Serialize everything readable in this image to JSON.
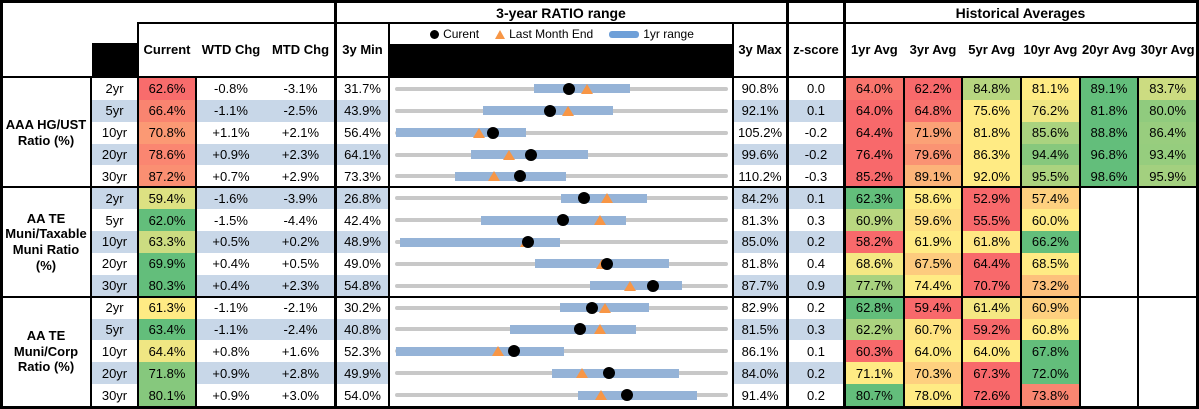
{
  "header": {
    "range_section_title": "3-year RATIO range",
    "historical_section_title": "Historical Averages",
    "legend": {
      "current_label": "Curent",
      "last_month_label": "Last Month End",
      "range_label": "1yr range"
    },
    "columns": {
      "current": "Current",
      "wtd": "WTD Chg",
      "mtd": "MTD Chg",
      "min": "3y Min",
      "max": "3y Max",
      "zscore": "z-score",
      "avgs": [
        "1yr Avg",
        "3yr Avg",
        "5yr Avg",
        "10yr Avg",
        "20yr Avg",
        "30yr Avg"
      ]
    }
  },
  "colors": {
    "stripe_blue": "#C8D7E8",
    "scale_min_red": "#F8696B",
    "scale_mid_yellow": "#FFEB84",
    "scale_max_green": "#63BE7B",
    "range_bar_blue": "#95B3D7",
    "track_gray": "#C8C8C8",
    "marker_dot_black": "#000000",
    "marker_triangle_orange": "#F79646",
    "header_black": "#000000"
  },
  "groups": [
    {
      "label": "AAA HG/UST Ratio (%)",
      "rows": [
        {
          "tenor": "2yr",
          "current": 62.6,
          "wtd": "-0.8%",
          "mtd": "-3.1%",
          "min": 31.7,
          "max": 90.8,
          "zscore": "0.0",
          "avgs": [
            64.0,
            62.2,
            84.8,
            81.1,
            89.1,
            83.7
          ],
          "bar": [
            56.3,
            73.4
          ],
          "last_month": 65.7
        },
        {
          "tenor": "5yr",
          "current": 66.4,
          "wtd": "-1.1%",
          "mtd": "-2.5%",
          "min": 43.9,
          "max": 92.1,
          "zscore": "0.1",
          "avgs": [
            64.0,
            64.8,
            75.6,
            76.2,
            81.8,
            80.0
          ],
          "bar": [
            56.6,
            75.5
          ],
          "last_month": 68.9
        },
        {
          "tenor": "10yr",
          "current": 70.8,
          "wtd": "+1.1%",
          "mtd": "+2.1%",
          "min": 56.4,
          "max": 105.2,
          "zscore": "-0.2",
          "avgs": [
            64.4,
            71.9,
            81.8,
            85.6,
            88.8,
            86.4
          ],
          "bar": [
            56.5,
            75.6
          ],
          "last_month": 68.7
        },
        {
          "tenor": "20yr",
          "current": 78.6,
          "wtd": "+0.9%",
          "mtd": "+2.3%",
          "min": 64.1,
          "max": 99.6,
          "zscore": "-0.2",
          "avgs": [
            76.4,
            79.6,
            86.3,
            94.4,
            96.8,
            93.4
          ],
          "bar": [
            72.2,
            84.7
          ],
          "last_month": 76.3
        },
        {
          "tenor": "30yr",
          "current": 87.2,
          "wtd": "+0.7%",
          "mtd": "+2.9%",
          "min": 73.3,
          "max": 110.2,
          "zscore": "-0.3",
          "avgs": [
            85.2,
            89.1,
            92.0,
            95.5,
            98.6,
            95.9
          ],
          "bar": [
            79.9,
            92.3
          ],
          "last_month": 84.3
        }
      ]
    },
    {
      "label": "AA TE Muni/Taxable Muni Ratio (%)",
      "rows": [
        {
          "tenor": "2yr",
          "current": 59.4,
          "wtd": "-1.6%",
          "mtd": "-3.9%",
          "min": 26.8,
          "max": 84.2,
          "zscore": "0.1",
          "avgs": [
            62.3,
            58.6,
            52.9,
            57.4,
            null,
            null
          ],
          "bar": [
            55.4,
            70.3
          ],
          "last_month": 63.3
        },
        {
          "tenor": "5yr",
          "current": 62.0,
          "wtd": "-1.5%",
          "mtd": "-4.4%",
          "min": 42.4,
          "max": 81.3,
          "zscore": "0.3",
          "avgs": [
            60.9,
            59.6,
            55.5,
            60.0,
            null,
            null
          ],
          "bar": [
            52.5,
            69.4
          ],
          "last_month": 66.4
        },
        {
          "tenor": "10yr",
          "current": 63.3,
          "wtd": "+0.5%",
          "mtd": "+0.2%",
          "min": 48.9,
          "max": 85.0,
          "zscore": "0.2",
          "avgs": [
            58.2,
            61.9,
            61.8,
            66.2,
            null,
            null
          ],
          "bar": [
            49.4,
            66.8
          ],
          "last_month": 63.1
        },
        {
          "tenor": "20yr",
          "current": 69.9,
          "wtd": "+0.4%",
          "mtd": "+0.5%",
          "min": 49.0,
          "max": 81.8,
          "zscore": "0.4",
          "avgs": [
            68.6,
            67.5,
            64.4,
            68.5,
            null,
            null
          ],
          "bar": [
            62.8,
            76.0
          ],
          "last_month": 69.4
        },
        {
          "tenor": "30yr",
          "current": 80.3,
          "wtd": "+0.4%",
          "mtd": "+2.3%",
          "min": 54.8,
          "max": 87.7,
          "zscore": "0.9",
          "avgs": [
            77.7,
            74.4,
            70.7,
            73.2,
            null,
            null
          ],
          "bar": [
            74.1,
            83.2
          ],
          "last_month": 78.0
        }
      ]
    },
    {
      "label": "AA TE Muni/Corp Ratio (%)",
      "rows": [
        {
          "tenor": "2yr",
          "current": 61.3,
          "wtd": "-1.1%",
          "mtd": "-2.1%",
          "min": 30.2,
          "max": 82.9,
          "zscore": "0.2",
          "avgs": [
            62.8,
            59.4,
            61.4,
            60.9,
            null,
            null
          ],
          "bar": [
            56.3,
            70.4
          ],
          "last_month": 63.4
        },
        {
          "tenor": "5yr",
          "current": 63.4,
          "wtd": "-1.1%",
          "mtd": "-2.4%",
          "min": 40.8,
          "max": 81.5,
          "zscore": "0.3",
          "avgs": [
            62.2,
            60.7,
            59.2,
            60.8,
            null,
            null
          ],
          "bar": [
            54.8,
            70.2
          ],
          "last_month": 65.8
        },
        {
          "tenor": "10yr",
          "current": 64.4,
          "wtd": "+0.8%",
          "mtd": "+1.6%",
          "min": 52.3,
          "max": 86.1,
          "zscore": "0.1",
          "avgs": [
            60.3,
            64.0,
            64.0,
            67.8,
            null,
            null
          ],
          "bar": [
            52.4,
            69.5
          ],
          "last_month": 62.8
        },
        {
          "tenor": "20yr",
          "current": 71.8,
          "wtd": "+0.9%",
          "mtd": "+2.8%",
          "min": 49.9,
          "max": 84.0,
          "zscore": "0.2",
          "avgs": [
            71.1,
            70.3,
            67.3,
            72.0,
            null,
            null
          ],
          "bar": [
            66.0,
            79.0
          ],
          "last_month": 69.0
        },
        {
          "tenor": "30yr",
          "current": 80.1,
          "wtd": "+0.9%",
          "mtd": "+3.0%",
          "min": 54.0,
          "max": 91.4,
          "zscore": "0.2",
          "avgs": [
            80.7,
            78.0,
            72.6,
            73.8,
            null,
            null
          ],
          "bar": [
            74.5,
            87.9
          ],
          "last_month": 77.1
        }
      ]
    }
  ],
  "chart_data": {
    "type": "range_strip",
    "title": "3-year RATIO range",
    "legend": [
      "Curent",
      "Last Month End",
      "1yr range"
    ],
    "note": "Each row: gray track spans 3y Min to 3y Max; blue bar is 1yr range; black dot = current; orange triangle = last month end. Values in percent.",
    "rows": [
      {
        "group": "AAA HG/UST Ratio (%)",
        "tenor": "2yr",
        "min_3y": 31.7,
        "max_3y": 90.8,
        "range_1yr": [
          56.3,
          73.4
        ],
        "current": 62.6,
        "last_month_end": 65.7
      },
      {
        "group": "AAA HG/UST Ratio (%)",
        "tenor": "5yr",
        "min_3y": 43.9,
        "max_3y": 92.1,
        "range_1yr": [
          56.6,
          75.5
        ],
        "current": 66.4,
        "last_month_end": 68.9
      },
      {
        "group": "AAA HG/UST Ratio (%)",
        "tenor": "10yr",
        "min_3y": 56.4,
        "max_3y": 105.2,
        "range_1yr": [
          56.5,
          75.6
        ],
        "current": 70.8,
        "last_month_end": 68.7
      },
      {
        "group": "AAA HG/UST Ratio (%)",
        "tenor": "20yr",
        "min_3y": 64.1,
        "max_3y": 99.6,
        "range_1yr": [
          72.2,
          84.7
        ],
        "current": 78.6,
        "last_month_end": 76.3
      },
      {
        "group": "AAA HG/UST Ratio (%)",
        "tenor": "30yr",
        "min_3y": 73.3,
        "max_3y": 110.2,
        "range_1yr": [
          79.9,
          92.3
        ],
        "current": 87.2,
        "last_month_end": 84.3
      },
      {
        "group": "AA TE Muni/Taxable Muni Ratio (%)",
        "tenor": "2yr",
        "min_3y": 26.8,
        "max_3y": 84.2,
        "range_1yr": [
          55.4,
          70.3
        ],
        "current": 59.4,
        "last_month_end": 63.3
      },
      {
        "group": "AA TE Muni/Taxable Muni Ratio (%)",
        "tenor": "5yr",
        "min_3y": 42.4,
        "max_3y": 81.3,
        "range_1yr": [
          52.5,
          69.4
        ],
        "current": 62.0,
        "last_month_end": 66.4
      },
      {
        "group": "AA TE Muni/Taxable Muni Ratio (%)",
        "tenor": "10yr",
        "min_3y": 48.9,
        "max_3y": 85.0,
        "range_1yr": [
          49.4,
          66.8
        ],
        "current": 63.3,
        "last_month_end": 63.1
      },
      {
        "group": "AA TE Muni/Taxable Muni Ratio (%)",
        "tenor": "20yr",
        "min_3y": 49.0,
        "max_3y": 81.8,
        "range_1yr": [
          62.8,
          76.0
        ],
        "current": 69.9,
        "last_month_end": 69.4
      },
      {
        "group": "AA TE Muni/Taxable Muni Ratio (%)",
        "tenor": "30yr",
        "min_3y": 54.8,
        "max_3y": 87.7,
        "range_1yr": [
          74.1,
          83.2
        ],
        "current": 80.3,
        "last_month_end": 78.0
      },
      {
        "group": "AA TE Muni/Corp Ratio (%)",
        "tenor": "2yr",
        "min_3y": 30.2,
        "max_3y": 82.9,
        "range_1yr": [
          56.3,
          70.4
        ],
        "current": 61.3,
        "last_month_end": 63.4
      },
      {
        "group": "AA TE Muni/Corp Ratio (%)",
        "tenor": "5yr",
        "min_3y": 40.8,
        "max_3y": 81.5,
        "range_1yr": [
          54.8,
          70.2
        ],
        "current": 63.4,
        "last_month_end": 65.8
      },
      {
        "group": "AA TE Muni/Corp Ratio (%)",
        "tenor": "10yr",
        "min_3y": 52.3,
        "max_3y": 86.1,
        "range_1yr": [
          52.4,
          69.5
        ],
        "current": 64.4,
        "last_month_end": 62.8
      },
      {
        "group": "AA TE Muni/Corp Ratio (%)",
        "tenor": "20yr",
        "min_3y": 49.9,
        "max_3y": 84.0,
        "range_1yr": [
          66.0,
          79.0
        ],
        "current": 71.8,
        "last_month_end": 69.0
      },
      {
        "group": "AA TE Muni/Corp Ratio (%)",
        "tenor": "30yr",
        "min_3y": 54.0,
        "max_3y": 91.4,
        "range_1yr": [
          74.5,
          87.9
        ],
        "current": 80.1,
        "last_month_end": 77.1
      }
    ]
  }
}
